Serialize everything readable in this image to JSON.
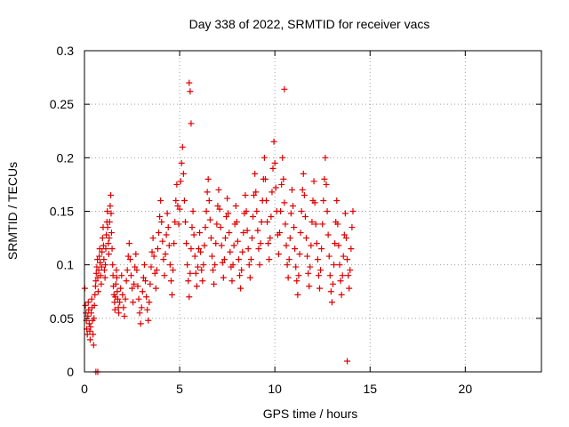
{
  "chart_data": {
    "type": "scatter",
    "title": "Day 338 of 2022, SRMTID for receiver vacs",
    "xlabel": "GPS time / hours",
    "ylabel": "SRMTID / TECUs",
    "xlim": [
      0,
      24
    ],
    "ylim": [
      0,
      0.3
    ],
    "x_ticks": [
      0,
      5,
      10,
      15,
      20
    ],
    "x_tick_labels": [
      "0",
      "5",
      "10",
      "15",
      "20"
    ],
    "y_ticks": [
      0,
      0.05,
      0.1,
      0.15,
      0.2,
      0.25,
      0.3
    ],
    "y_tick_labels": [
      "0",
      "0.05",
      "0.1",
      "0.15",
      "0.2",
      "0.25",
      "0.3"
    ],
    "grid": true,
    "marker": "plus",
    "marker_color": "#e00000",
    "series": [
      {
        "name": "SRMTID",
        "x": [
          0.02,
          0.05,
          0.08,
          0.1,
          0.12,
          0.15,
          0.18,
          0.2,
          0.22,
          0.25,
          0.28,
          0.3,
          0.32,
          0.35,
          0.38,
          0.4,
          0.42,
          0.45,
          0.48,
          0.5,
          0.52,
          0.55,
          0.58,
          0.6,
          0.62,
          0.65,
          0.68,
          0.7,
          0.72,
          0.75,
          0.78,
          0.8,
          0.82,
          0.85,
          0.88,
          0.9,
          0.92,
          0.95,
          0.98,
          1.0,
          1.02,
          1.05,
          1.08,
          1.1,
          1.12,
          1.15,
          1.18,
          1.2,
          1.22,
          1.25,
          1.28,
          1.3,
          1.32,
          1.35,
          1.38,
          1.4,
          1.42,
          1.45,
          1.48,
          1.5,
          1.52,
          1.55,
          1.58,
          1.6,
          1.62,
          1.65,
          1.68,
          1.7,
          1.72,
          1.75,
          1.78,
          1.8,
          1.85,
          1.9,
          1.95,
          2.0,
          2.05,
          2.1,
          2.15,
          2.2,
          2.25,
          2.3,
          2.35,
          2.4,
          2.45,
          2.5,
          2.55,
          2.6,
          2.65,
          2.7,
          2.75,
          2.8,
          2.85,
          2.9,
          2.95,
          3.0,
          3.05,
          3.1,
          3.15,
          3.2,
          3.25,
          3.3,
          3.35,
          3.4,
          3.45,
          3.5,
          3.55,
          3.6,
          3.65,
          3.7,
          3.75,
          3.8,
          3.85,
          3.9,
          3.95,
          4.0,
          4.05,
          4.1,
          4.15,
          4.2,
          4.25,
          4.3,
          4.35,
          4.4,
          4.45,
          4.5,
          4.55,
          4.6,
          4.65,
          4.7,
          4.75,
          4.8,
          4.85,
          4.9,
          4.95,
          5.0,
          5.05,
          5.1,
          5.15,
          5.2,
          5.25,
          5.3,
          5.35,
          5.4,
          5.45,
          5.5,
          5.55,
          5.6,
          5.65,
          5.7,
          5.75,
          5.8,
          5.85,
          5.9,
          5.95,
          6.0,
          6.05,
          6.1,
          6.15,
          6.2,
          6.25,
          6.3,
          6.35,
          6.4,
          6.45,
          6.5,
          6.55,
          6.6,
          6.65,
          6.7,
          6.75,
          6.8,
          6.85,
          6.9,
          6.95,
          7.0,
          7.05,
          7.1,
          7.15,
          7.2,
          7.25,
          7.3,
          7.35,
          7.4,
          7.45,
          7.5,
          7.55,
          7.6,
          7.65,
          7.7,
          7.75,
          7.8,
          7.85,
          7.9,
          7.95,
          8.0,
          8.05,
          8.1,
          8.15,
          8.2,
          8.25,
          8.3,
          8.35,
          8.4,
          8.45,
          8.5,
          8.55,
          8.6,
          8.65,
          8.7,
          8.75,
          8.8,
          8.85,
          8.9,
          8.95,
          9.0,
          9.05,
          9.1,
          9.15,
          9.2,
          9.25,
          9.3,
          9.35,
          9.4,
          9.45,
          9.5,
          9.55,
          9.6,
          9.65,
          9.7,
          9.75,
          9.8,
          9.85,
          9.9,
          9.95,
          10.0,
          10.05,
          10.1,
          10.15,
          10.2,
          10.25,
          10.3,
          10.35,
          10.4,
          10.45,
          10.5,
          10.55,
          10.6,
          10.65,
          10.7,
          10.75,
          10.8,
          10.85,
          10.9,
          10.95,
          11.0,
          11.05,
          11.1,
          11.15,
          11.2,
          11.25,
          11.3,
          11.35,
          11.4,
          11.45,
          11.5,
          11.55,
          11.6,
          11.65,
          11.7,
          11.75,
          11.8,
          11.85,
          11.9,
          11.95,
          12.0,
          12.05,
          12.1,
          12.15,
          12.2,
          12.25,
          12.3,
          12.35,
          12.4,
          12.45,
          12.5,
          12.55,
          12.6,
          12.65,
          12.7,
          12.75,
          12.8,
          12.85,
          12.9,
          12.95,
          13.0,
          13.05,
          13.1,
          13.15,
          13.2,
          13.25,
          13.3,
          13.35,
          13.4,
          13.45,
          13.5,
          13.55,
          13.6,
          13.65,
          13.7,
          13.75,
          13.8,
          13.85,
          13.9,
          13.95,
          14.0,
          14.05,
          14.1,
          0.6,
          0.7,
          5.5,
          5.55,
          5.6,
          10.5,
          13.8
        ],
        "y": [
          0.078,
          0.062,
          0.055,
          0.048,
          0.04,
          0.035,
          0.052,
          0.065,
          0.058,
          0.045,
          0.038,
          0.03,
          0.042,
          0.055,
          0.068,
          0.06,
          0.048,
          0.035,
          0.025,
          0.05,
          0.062,
          0.072,
          0.08,
          0.085,
          0.092,
          0.098,
          0.105,
          0.088,
          0.075,
          0.095,
          0.108,
          0.115,
          0.102,
          0.09,
          0.082,
          0.098,
          0.112,
          0.125,
          0.135,
          0.118,
          0.105,
          0.095,
          0.088,
          0.1,
          0.115,
          0.128,
          0.14,
          0.15,
          0.135,
          0.12,
          0.11,
          0.125,
          0.14,
          0.155,
          0.165,
          0.148,
          0.13,
          0.115,
          0.1,
          0.09,
          0.08,
          0.072,
          0.065,
          0.058,
          0.07,
          0.082,
          0.095,
          0.088,
          0.075,
          0.068,
          0.06,
          0.055,
          0.065,
          0.078,
          0.09,
          0.072,
          0.06,
          0.052,
          0.068,
          0.085,
          0.095,
          0.108,
          0.12,
          0.105,
          0.09,
          0.078,
          0.065,
          0.082,
          0.098,
          0.11,
          0.095,
          0.08,
          0.068,
          0.055,
          0.045,
          0.06,
          0.075,
          0.088,
          0.1,
          0.085,
          0.07,
          0.058,
          0.048,
          0.065,
          0.082,
          0.098,
          0.112,
          0.125,
          0.108,
          0.092,
          0.078,
          0.095,
          0.115,
          0.13,
          0.145,
          0.16,
          0.14,
          0.122,
          0.105,
          0.09,
          0.11,
          0.128,
          0.148,
          0.135,
          0.118,
          0.1,
          0.085,
          0.072,
          0.095,
          0.12,
          0.14,
          0.16,
          0.175,
          0.155,
          0.138,
          0.152,
          0.178,
          0.195,
          0.21,
          0.185,
          0.16,
          0.14,
          0.12,
          0.1,
          0.085,
          0.07,
          0.092,
          0.115,
          0.135,
          0.15,
          0.128,
          0.108,
          0.092,
          0.08,
          0.098,
          0.115,
          0.13,
          0.112,
          0.095,
          0.085,
          0.1,
          0.118,
          0.135,
          0.15,
          0.168,
          0.18,
          0.16,
          0.142,
          0.125,
          0.108,
          0.095,
          0.082,
          0.1,
          0.12,
          0.138,
          0.155,
          0.17,
          0.152,
          0.135,
          0.118,
          0.102,
          0.088,
          0.105,
          0.125,
          0.145,
          0.162,
          0.148,
          0.13,
          0.112,
          0.098,
          0.085,
          0.1,
          0.118,
          0.138,
          0.155,
          0.14,
          0.122,
          0.105,
          0.09,
          0.078,
          0.095,
          0.112,
          0.13,
          0.148,
          0.165,
          0.15,
          0.132,
          0.115,
          0.1,
          0.088,
          0.105,
          0.125,
          0.145,
          0.165,
          0.185,
          0.168,
          0.15,
          0.132,
          0.115,
          0.1,
          0.12,
          0.14,
          0.16,
          0.18,
          0.2,
          0.18,
          0.16,
          0.14,
          0.12,
          0.105,
          0.125,
          0.145,
          0.168,
          0.19,
          0.215,
          0.195,
          0.172,
          0.15,
          0.128,
          0.11,
          0.13,
          0.15,
          0.175,
          0.2,
          0.18,
          0.158,
          0.138,
          0.118,
          0.1,
          0.088,
          0.105,
          0.125,
          0.148,
          0.17,
          0.155,
          0.135,
          0.115,
          0.098,
          0.085,
          0.072,
          0.09,
          0.11,
          0.13,
          0.15,
          0.17,
          0.185,
          0.165,
          0.145,
          0.125,
          0.108,
          0.092,
          0.08,
          0.098,
          0.118,
          0.14,
          0.16,
          0.178,
          0.158,
          0.138,
          0.12,
          0.105,
          0.09,
          0.078,
          0.095,
          0.115,
          0.138,
          0.16,
          0.18,
          0.2,
          0.175,
          0.15,
          0.128,
          0.108,
          0.09,
          0.075,
          0.065,
          0.082,
          0.1,
          0.12,
          0.14,
          0.16,
          0.138,
          0.118,
          0.1,
          0.085,
          0.072,
          0.09,
          0.108,
          0.128,
          0.148,
          0.125,
          0.105,
          0.09,
          0.078,
          0.095,
          0.115,
          0.135,
          0.15,
          0.0,
          0.0,
          0.27,
          0.262,
          0.232,
          0.264,
          0.01
        ]
      }
    ]
  }
}
